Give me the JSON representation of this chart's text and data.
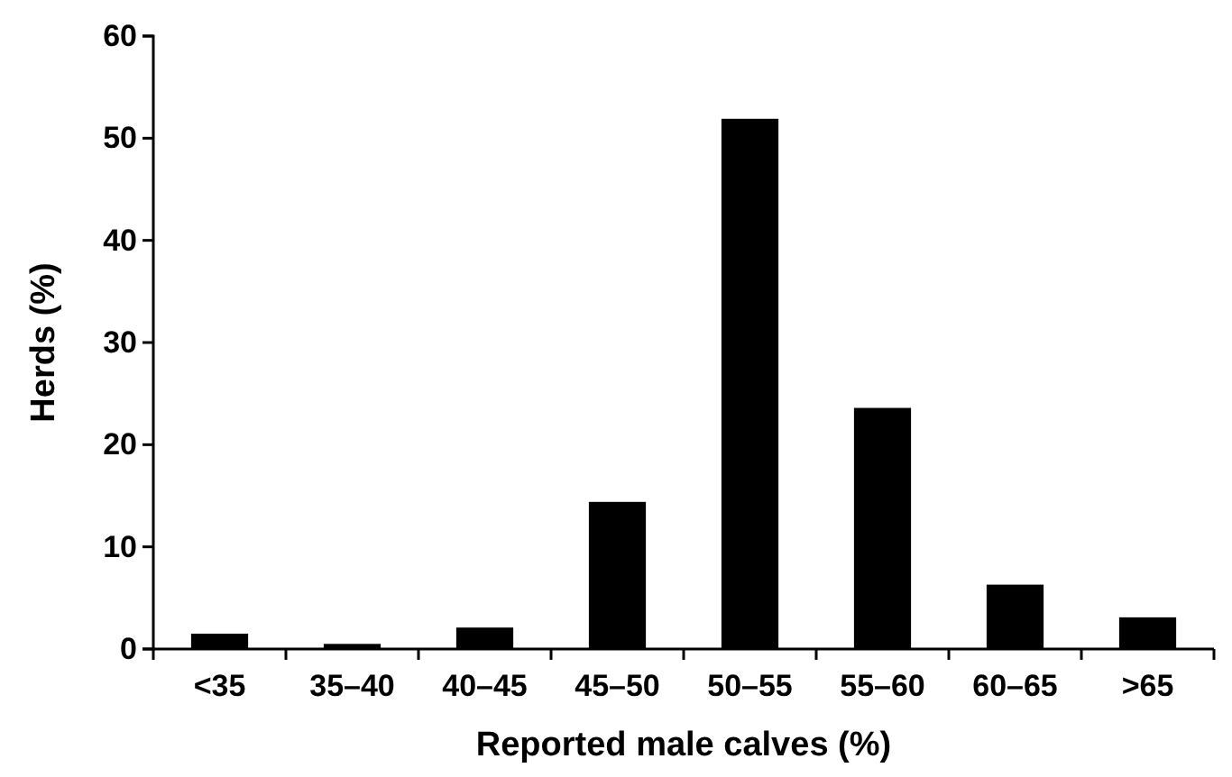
{
  "chart_data": {
    "type": "bar",
    "xlabel": "Reported male calves (%)",
    "ylabel": "Herds (%)",
    "categories": [
      "<35",
      "35–40",
      "40–45",
      "45–50",
      "50–55",
      "55–60",
      "60–65",
      ">65"
    ],
    "values": [
      1.5,
      0.5,
      2.1,
      14.4,
      51.9,
      23.6,
      6.3,
      3.1
    ],
    "color": "#000000",
    "ylim": [
      0,
      60
    ],
    "yticks": [
      0,
      10,
      20,
      30,
      40,
      50,
      60
    ],
    "grid": false
  }
}
